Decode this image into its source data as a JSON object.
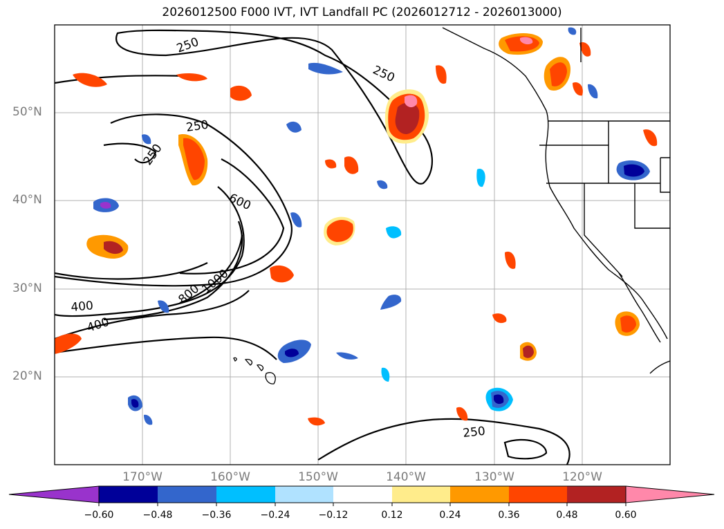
{
  "title": "2026012500 F000 IVT, IVT Landfall PC (2026012712 - 2026013000)",
  "axes": {
    "lat_labels": [
      "50°N",
      "40°N",
      "30°N",
      "20°N"
    ],
    "lon_labels": [
      "170°W",
      "160°W",
      "150°W",
      "140°W",
      "130°W",
      "120°W"
    ]
  },
  "contour_labels": [
    "250",
    "250",
    "250",
    "250",
    "600",
    "800",
    "1000",
    "400",
    "400",
    "250"
  ],
  "colorbar": {
    "ticks": [
      "−0.60",
      "−0.48",
      "−0.36",
      "−0.24",
      "−0.12",
      "0.12",
      "0.24",
      "0.36",
      "0.48",
      "0.60"
    ],
    "colors": [
      "#9933cc",
      "#000099",
      "#3366cc",
      "#00bfff",
      "#b0e2ff",
      "#ffffff",
      "#ffec8b",
      "#ff9900",
      "#ff4500",
      "#b22222",
      "#ff88aa"
    ]
  },
  "colors": {
    "pos_light": "#ffec8b",
    "pos_orange": "#ff9900",
    "pos_red": "#ff4500",
    "pos_dark": "#b22222",
    "pos_pink": "#ff88aa",
    "neg_light": "#b0e2ff",
    "neg_cyan": "#00bfff",
    "neg_blue": "#3366cc",
    "neg_navy": "#000099",
    "neg_purple": "#9933cc"
  }
}
